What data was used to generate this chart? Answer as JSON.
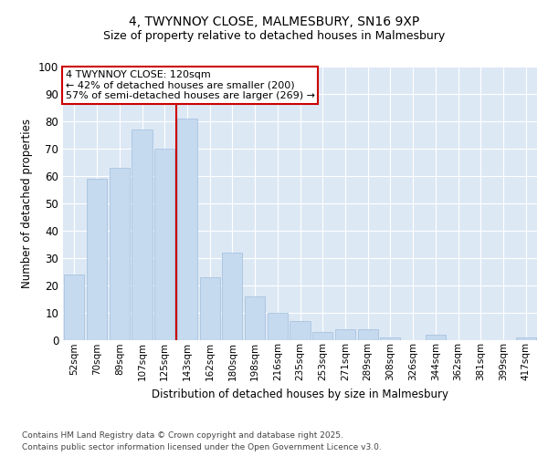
{
  "title_line1": "4, TWYNNOY CLOSE, MALMESBURY, SN16 9XP",
  "title_line2": "Size of property relative to detached houses in Malmesbury",
  "xlabel": "Distribution of detached houses by size in Malmesbury",
  "ylabel": "Number of detached properties",
  "categories": [
    "52sqm",
    "70sqm",
    "89sqm",
    "107sqm",
    "125sqm",
    "143sqm",
    "162sqm",
    "180sqm",
    "198sqm",
    "216sqm",
    "235sqm",
    "253sqm",
    "271sqm",
    "289sqm",
    "308sqm",
    "326sqm",
    "344sqm",
    "362sqm",
    "381sqm",
    "399sqm",
    "417sqm"
  ],
  "values": [
    24,
    59,
    63,
    77,
    70,
    81,
    23,
    32,
    16,
    10,
    7,
    3,
    4,
    4,
    1,
    0,
    2,
    0,
    0,
    0,
    1
  ],
  "bar_color": "#c5d9ef",
  "bar_edge_color": "#a8c4e0",
  "plot_bg_color": "#dde8f5",
  "outer_bg_color": "#ffffff",
  "grid_color": "#ffffff",
  "vline_x": 4.5,
  "vline_color": "#cc0000",
  "annotation_title": "4 TWYNNOY CLOSE: 120sqm",
  "annotation_line1": "← 42% of detached houses are smaller (200)",
  "annotation_line2": "57% of semi-detached houses are larger (269) →",
  "annotation_box_color": "#cc0000",
  "ylim": [
    0,
    100
  ],
  "yticks": [
    0,
    10,
    20,
    30,
    40,
    50,
    60,
    70,
    80,
    90,
    100
  ],
  "footer_line1": "Contains HM Land Registry data © Crown copyright and database right 2025.",
  "footer_line2": "Contains public sector information licensed under the Open Government Licence v3.0."
}
